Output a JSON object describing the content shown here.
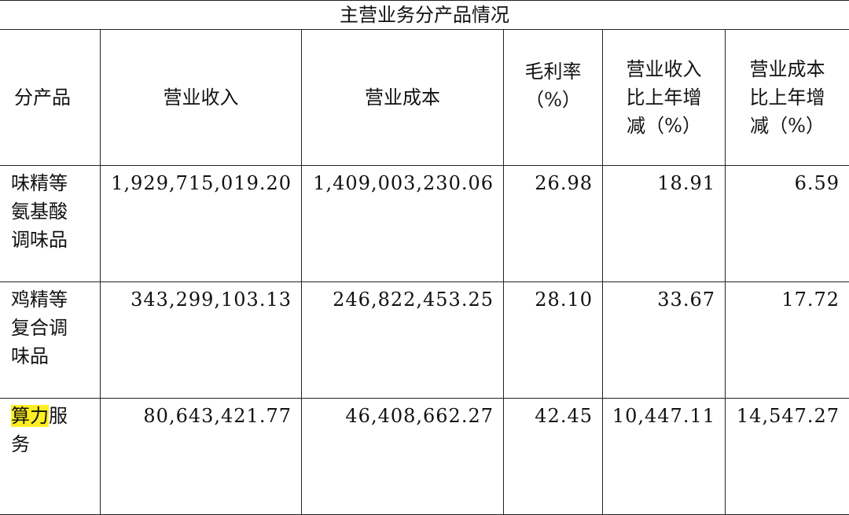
{
  "table": {
    "title": "主营业务分产品情况",
    "headers": [
      "分产品",
      "营业收入",
      "营业成本",
      "毛利率（%）",
      "营业收入比上年增减（%）",
      "营业成本比上年增减（%）"
    ],
    "header_lines": {
      "gross_margin": [
        "毛利率",
        "（%）"
      ],
      "revenue_change": [
        "营业收入",
        "比上年增",
        "减（%）"
      ],
      "cost_change": [
        "营业成本",
        "比上年增",
        "减（%）"
      ]
    },
    "rows": [
      {
        "product_lines": [
          "味精等",
          "氨基酸",
          "调味品"
        ],
        "revenue": "1,929,715,019.20",
        "cost": "1,409,003,230.06",
        "gross_margin": "26.98",
        "revenue_change": "18.91",
        "cost_change": "6.59"
      },
      {
        "product_lines": [
          "鸡精等",
          "复合调",
          "味品"
        ],
        "revenue": "343,299,103.13",
        "cost": "246,822,453.25",
        "gross_margin": "28.10",
        "revenue_change": "33.67",
        "cost_change": "17.72"
      },
      {
        "product_highlight": "算力",
        "product_rest": "服",
        "product_line2": "务",
        "revenue": "80,643,421.77",
        "cost": "46,408,662.27",
        "gross_margin": "42.45",
        "revenue_change": "10,447.11",
        "cost_change": "14,547.27"
      }
    ],
    "highlight_color": "#ffee22"
  }
}
